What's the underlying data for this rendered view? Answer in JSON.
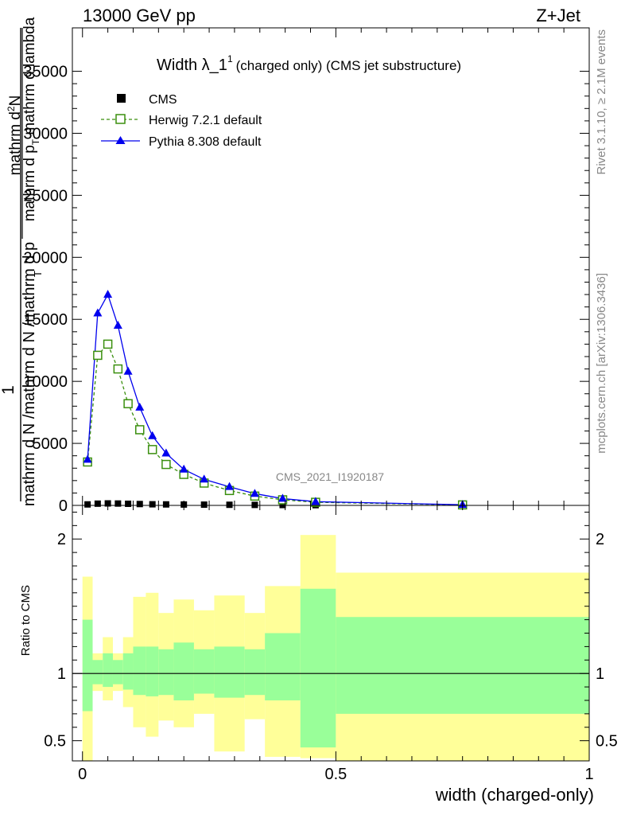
{
  "header": {
    "energy": "13000 GeV pp",
    "process": "Z+Jet"
  },
  "side": {
    "rivet": "Rivet 3.1.10, ≥ 2.1M events",
    "site": "mcplots.cern.ch [arXiv:1306.3436]"
  },
  "chart_data": [
    {
      "type": "line",
      "title": "Width λ_1",
      "title_sup": "1",
      "title_note": "(charged only) (CMS jet substructure)",
      "watermark": "CMS_2021_I1920187",
      "ylabel_num": "1",
      "ylabel_numer": "mathrm d N",
      "ylabel_denom_main": "mathrm d N /mathrm d p",
      "ylabel_denom_sub": "T",
      "ylabel_inner_num": "mathrm d",
      "ylabel_inner_sup": "2",
      "ylabel_inner_numer_tail": "N",
      "ylabel_inner_denom": "mathrm d p",
      "ylabel_inner_denom_sub": "T",
      "ylabel_inner_denom_tail": "mathrm d lambda",
      "xlim": [
        -0.02,
        1.0
      ],
      "ylim": [
        0,
        38500
      ],
      "yticks": [
        0,
        5000,
        10000,
        15000,
        20000,
        25000,
        30000,
        35000
      ],
      "ytick_labels": [
        "0",
        "5000",
        "10000",
        "15000",
        "20000",
        "25000",
        "30000",
        "35000"
      ],
      "legend_position": "top-left",
      "series": [
        {
          "name": "CMS",
          "color": "#000000",
          "marker": "square",
          "x": [
            0.01,
            0.03,
            0.05,
            0.07,
            0.09,
            0.113,
            0.138,
            0.165,
            0.2,
            0.24,
            0.29,
            0.34,
            0.395,
            0.46,
            0.75
          ],
          "y": [
            80,
            140,
            160,
            150,
            130,
            110,
            90,
            80,
            70,
            60,
            50,
            40,
            30,
            20,
            5
          ]
        },
        {
          "name": "Herwig 7.2.1 default",
          "color": "#3a8f0e",
          "marker": "open-square",
          "dashed": true,
          "x": [
            0.01,
            0.03,
            0.05,
            0.07,
            0.09,
            0.113,
            0.138,
            0.165,
            0.2,
            0.24,
            0.29,
            0.34,
            0.395,
            0.46,
            0.75
          ],
          "y": [
            3500,
            12100,
            13000,
            11000,
            8200,
            6100,
            4500,
            3300,
            2500,
            1800,
            1200,
            750,
            450,
            250,
            40
          ]
        },
        {
          "name": "Pythia 8.308 default",
          "color": "#0000ee",
          "marker": "triangle",
          "x": [
            0.01,
            0.03,
            0.05,
            0.07,
            0.09,
            0.113,
            0.138,
            0.165,
            0.2,
            0.24,
            0.29,
            0.34,
            0.395,
            0.46,
            0.75
          ],
          "y": [
            3700,
            15500,
            17000,
            14500,
            10800,
            7900,
            5600,
            4200,
            2900,
            2100,
            1500,
            950,
            550,
            300,
            55
          ]
        }
      ]
    },
    {
      "type": "area",
      "ylabel": "Ratio to CMS",
      "xlabel": "width (charged-only)",
      "xlim": [
        -0.02,
        1.0
      ],
      "ylim": [
        0.35,
        2.25
      ],
      "xticks": [
        0,
        0.5,
        1
      ],
      "xtick_labels": [
        "0",
        "0.5",
        "1"
      ],
      "yticks": [
        0.5,
        1,
        2
      ],
      "ytick_labels": [
        "0.5",
        "1",
        "2"
      ],
      "reference_line": 1,
      "bins": [
        {
          "x0": 0.0,
          "x1": 0.02,
          "inner": [
            0.72,
            1.4
          ],
          "outer": [
            0.0,
            1.72
          ]
        },
        {
          "x0": 0.02,
          "x1": 0.04,
          "inner": [
            0.92,
            1.1
          ],
          "outer": [
            0.87,
            1.15
          ]
        },
        {
          "x0": 0.04,
          "x1": 0.06,
          "inner": [
            0.9,
            1.15
          ],
          "outer": [
            0.8,
            1.27
          ]
        },
        {
          "x0": 0.06,
          "x1": 0.08,
          "inner": [
            0.92,
            1.1
          ],
          "outer": [
            0.87,
            1.15
          ]
        },
        {
          "x0": 0.08,
          "x1": 0.1,
          "inner": [
            0.88,
            1.15
          ],
          "outer": [
            0.75,
            1.27
          ]
        },
        {
          "x0": 0.1,
          "x1": 0.125,
          "inner": [
            0.84,
            1.2
          ],
          "outer": [
            0.6,
            1.57
          ]
        },
        {
          "x0": 0.125,
          "x1": 0.15,
          "inner": [
            0.83,
            1.2
          ],
          "outer": [
            0.53,
            1.6
          ]
        },
        {
          "x0": 0.15,
          "x1": 0.18,
          "inner": [
            0.84,
            1.18
          ],
          "outer": [
            0.65,
            1.45
          ]
        },
        {
          "x0": 0.18,
          "x1": 0.22,
          "inner": [
            0.8,
            1.23
          ],
          "outer": [
            0.6,
            1.55
          ]
        },
        {
          "x0": 0.22,
          "x1": 0.26,
          "inner": [
            0.85,
            1.18
          ],
          "outer": [
            0.7,
            1.47
          ]
        },
        {
          "x0": 0.26,
          "x1": 0.32,
          "inner": [
            0.82,
            1.2
          ],
          "outer": [
            0.42,
            1.58
          ]
        },
        {
          "x0": 0.32,
          "x1": 0.36,
          "inner": [
            0.84,
            1.18
          ],
          "outer": [
            0.66,
            1.45
          ]
        },
        {
          "x0": 0.36,
          "x1": 0.43,
          "inner": [
            0.8,
            1.3
          ],
          "outer": [
            0.38,
            1.65
          ]
        },
        {
          "x0": 0.43,
          "x1": 0.5,
          "inner": [
            0.45,
            1.63
          ],
          "outer": [
            0.37,
            2.03
          ]
        },
        {
          "x0": 0.5,
          "x1": 1.0,
          "inner": [
            0.7,
            1.42
          ],
          "outer": [
            0.35,
            1.75
          ]
        }
      ],
      "colors": {
        "inner": "#99ff99",
        "outer": "#ffff99"
      }
    }
  ]
}
